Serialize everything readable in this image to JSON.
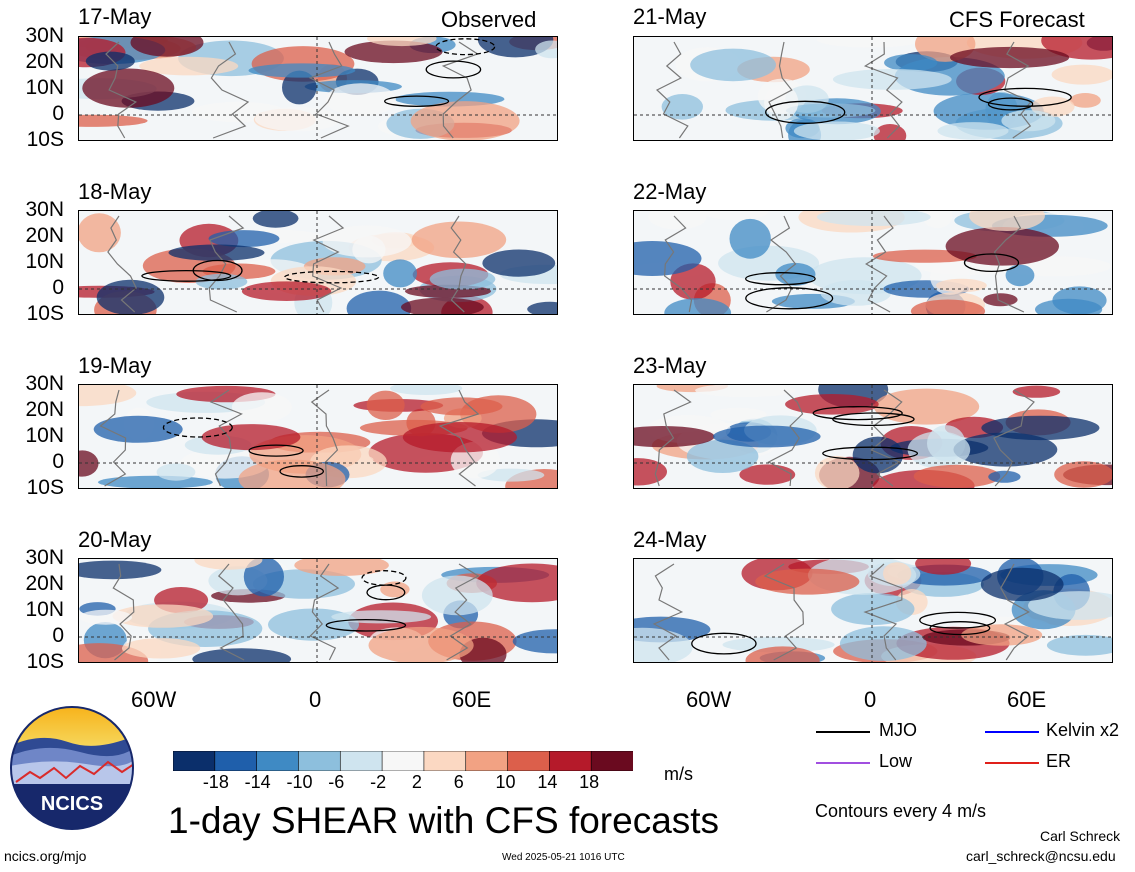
{
  "header": {
    "left_tag": "Observed",
    "right_tag": "CFS Forecast"
  },
  "observed_panels": [
    {
      "date": "17-May"
    },
    {
      "date": "18-May"
    },
    {
      "date": "19-May"
    },
    {
      "date": "20-May"
    }
  ],
  "forecast_panels": [
    {
      "date": "21-May"
    },
    {
      "date": "22-May"
    },
    {
      "date": "23-May"
    },
    {
      "date": "24-May"
    }
  ],
  "lat_labels": [
    "30N",
    "20N",
    "10N",
    "0",
    "10S"
  ],
  "lon_labels": [
    "60W",
    "0",
    "60E"
  ],
  "colorbar": {
    "ticks": [
      "-18",
      "-14",
      "-10",
      "-6",
      "-2",
      "2",
      "6",
      "10",
      "14",
      "18"
    ],
    "unit": "m/s",
    "colors": [
      "#0b2f6b",
      "#1f5fab",
      "#3f8ac4",
      "#8dbfdd",
      "#cfe4ef",
      "#f7f7f7",
      "#fbd8c2",
      "#f2a283",
      "#dc5f4b",
      "#b51a2a",
      "#6a0a1f"
    ]
  },
  "legend": {
    "items": [
      {
        "label": "MJO",
        "color": "#000000"
      },
      {
        "label": "Kelvin x2",
        "color": "#0000ff"
      },
      {
        "label": "Low",
        "color": "#a14fe0"
      },
      {
        "label": "ER",
        "color": "#e0201a"
      }
    ],
    "contour_note": "Contours every 4 m/s"
  },
  "logo": {
    "text": "NCICS"
  },
  "title": "1-day SHEAR with CFS forecasts",
  "footer": {
    "url": "ncics.org/mjo",
    "timestamp": "Wed 2025-05-21 1016 UTC",
    "author": "Carl Schreck",
    "email": "carl_schreck@ncsu.edu"
  }
}
